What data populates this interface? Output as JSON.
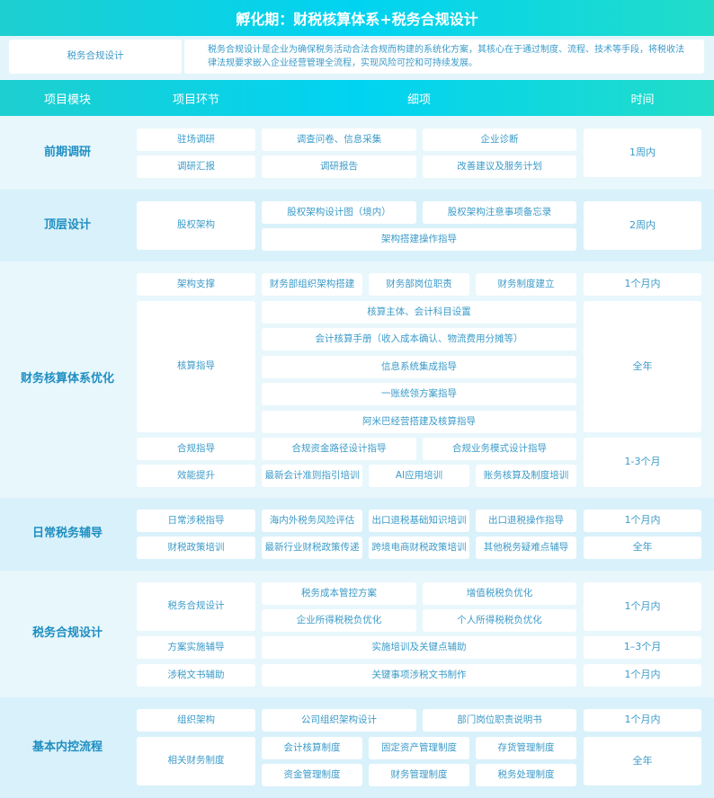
{
  "title": "孵化期：财税核算体系+税务合规设计",
  "intro": {
    "label": "税务合规设计",
    "description": "税务合规设计是企业为确保税务活动合法合规而构建的系统化方案，其核心在于通过制度、流程、技术等手段，将税收法律法规要求嵌入企业经营管理全流程，实现风险可控和可持续发展。"
  },
  "headers": [
    "项目模块",
    "项目环节",
    "细项",
    "时间"
  ],
  "sections": [
    {
      "module": "前期调研",
      "cells": [
        "驻场调研",
        "调查问卷、信息采集",
        "企业诊断",
        "1周内",
        "调研汇报",
        "调研报告",
        "改善建议及服务计划"
      ]
    },
    {
      "module": "顶层设计",
      "cells": [
        "股权架构",
        "股权架构设计图（境内）",
        "股权架构注意事项备忘录",
        "架构搭建操作指导",
        "2周内"
      ]
    },
    {
      "module": "财务核算体系优化",
      "cells": [
        "架构支撑",
        "财务部组织架构搭建",
        "财务部岗位职责",
        "财务制度建立",
        "1个月内",
        "核算指导",
        "核算主体、会计科目设置",
        "会计核算手册（收入成本确认、物流费用分摊等）",
        "信息系统集成指导",
        "一账统领方案指导",
        "阿米巴经营搭建及核算指导",
        "全年",
        "合规指导",
        "合规资金路径设计指导",
        "合规业务模式设计指导",
        "1-3个月",
        "效能提升",
        "最新会计准则指引培训",
        "AI应用培训",
        "账务核算及制度培训"
      ]
    },
    {
      "module": "日常税务辅导",
      "cells": [
        "日常涉税指导",
        "海内外税务风险评估",
        "出口退税基础知识培训",
        "出口退税操作指导",
        "1个月内",
        "财税政策培训",
        "最新行业财税政策传递",
        "跨境电商财税政策培训",
        "其他税务疑难点辅导",
        "全年"
      ]
    },
    {
      "module": "税务合规设计",
      "cells": [
        "税务合规设计",
        "税务成本管控方案",
        "增值税税负优化",
        "企业所得税税负优化",
        "个人所得税税负优化",
        "1个月内",
        "方案实施辅导",
        "实施培训及关键点辅助",
        "1–3个月",
        "涉税文书辅助",
        "关键事项涉税文书制作",
        "1个月内"
      ]
    },
    {
      "module": "基本内控流程",
      "cells": [
        "组织架构",
        "公司组织架构设计",
        "部门岗位职责说明书",
        "1个月内",
        "相关财务制度",
        "会计核算制度",
        "固定资产管理制度",
        "存货管理制度",
        "全年",
        "资金管理制度",
        "财务管理制度",
        "税务处理制度"
      ]
    }
  ]
}
